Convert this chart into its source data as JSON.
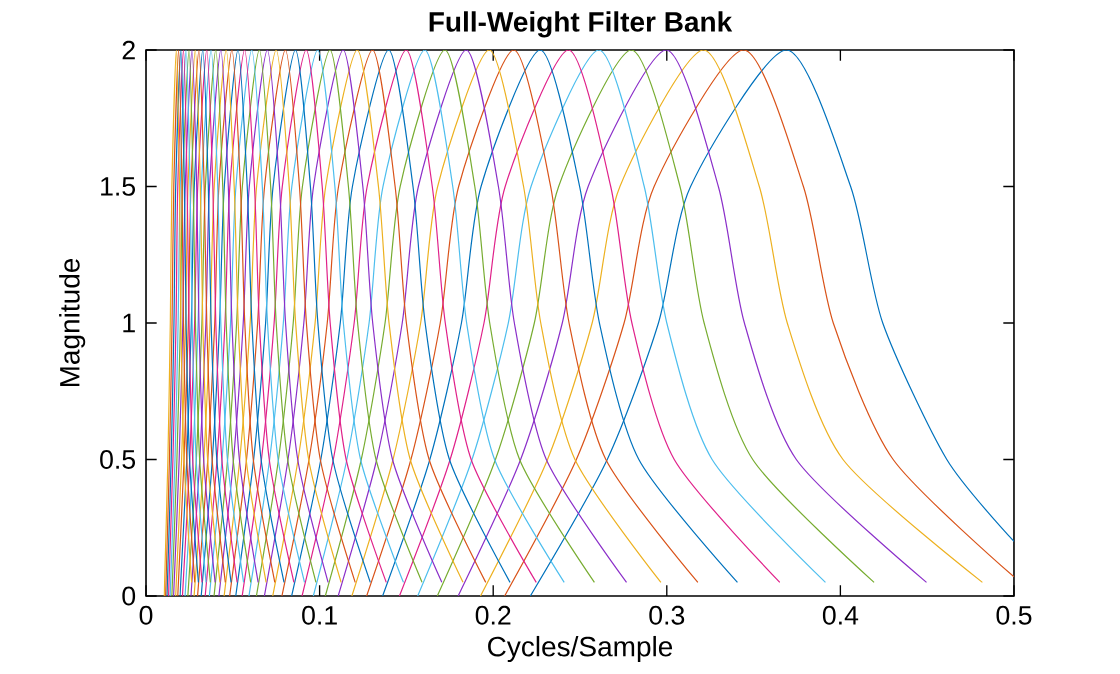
{
  "chart_data": {
    "type": "line",
    "title": "Full-Weight Filter Bank",
    "xlabel": "Cycles/Sample",
    "ylabel": "Magnitude",
    "xlim": [
      0,
      0.5
    ],
    "ylim": [
      0,
      2
    ],
    "xticks": [
      0,
      0.1,
      0.2,
      0.3,
      0.4,
      0.5
    ],
    "yticks": [
      0,
      0.5,
      1,
      1.5,
      2
    ],
    "grid": false,
    "marker": "none",
    "line_style": "solid",
    "series": [
      {
        "color": "#0072bd",
        "x": [
          0.2214,
          0.2657,
          0.2952,
          0.3137,
          0.369,
          0.4059,
          0.4244,
          0.4613,
          0.5
        ],
        "values": [
          0,
          0.5,
          1,
          1.5,
          2,
          1.5,
          1,
          0.5,
          0.2
        ]
      },
      {
        "color": "#d95319",
        "x": [
          0.2066,
          0.2479,
          0.2754,
          0.2927,
          0.3443,
          0.3787,
          0.3959,
          0.4304,
          0.5
        ],
        "values": [
          0,
          0.5,
          1,
          1.5,
          2,
          1.5,
          1,
          0.5,
          0.07
        ]
      },
      {
        "color": "#edb120",
        "x": [
          0.1927,
          0.2313,
          0.257,
          0.273,
          0.3212,
          0.3533,
          0.3694,
          0.4015,
          0.4818
        ],
        "values": [
          0,
          0.5,
          1,
          1.5,
          2,
          1.5,
          1,
          0.5,
          0.05
        ]
      },
      {
        "color": "#8b2fc9",
        "x": [
          0.1798,
          0.2158,
          0.2398,
          0.2547,
          0.2997,
          0.3297,
          0.3447,
          0.3746,
          0.4496
        ],
        "values": [
          0,
          0.5,
          1,
          1.5,
          2,
          1.5,
          1,
          0.5,
          0.05
        ]
      },
      {
        "color": "#77ac30",
        "x": [
          0.1678,
          0.2013,
          0.2237,
          0.2377,
          0.2796,
          0.3076,
          0.3215,
          0.3495,
          0.4194
        ],
        "values": [
          0,
          0.5,
          1,
          1.5,
          2,
          1.5,
          1,
          0.5,
          0.05
        ]
      },
      {
        "color": "#4dbeee",
        "x": [
          0.1565,
          0.1878,
          0.2087,
          0.2218,
          0.2609,
          0.287,
          0.3,
          0.3261,
          0.3914
        ],
        "values": [
          0,
          0.5,
          1,
          1.5,
          2,
          1.5,
          1,
          0.5,
          0.05
        ]
      },
      {
        "color": "#e0218a",
        "x": [
          0.146,
          0.1752,
          0.1947,
          0.2069,
          0.2434,
          0.2677,
          0.2799,
          0.3043,
          0.3651
        ],
        "values": [
          0,
          0.5,
          1,
          1.5,
          2,
          1.5,
          1,
          0.5,
          0.05
        ]
      },
      {
        "color": "#0072bd",
        "x": [
          0.1363,
          0.1635,
          0.1817,
          0.193,
          0.2271,
          0.2498,
          0.2612,
          0.2839,
          0.3407
        ],
        "values": [
          0,
          0.5,
          1,
          1.5,
          2,
          1.5,
          1,
          0.5,
          0.05
        ]
      },
      {
        "color": "#d95319",
        "x": [
          0.1271,
          0.1526,
          0.1695,
          0.1801,
          0.2119,
          0.2331,
          0.2437,
          0.2649,
          0.3179
        ],
        "values": [
          0,
          0.5,
          1,
          1.5,
          2,
          1.5,
          1,
          0.5,
          0.05
        ]
      },
      {
        "color": "#edb120",
        "x": [
          0.1186,
          0.1423,
          0.1582,
          0.168,
          0.1977,
          0.2175,
          0.2274,
          0.2471,
          0.2966
        ],
        "values": [
          0,
          0.5,
          1,
          1.5,
          2,
          1.5,
          1,
          0.5,
          0.05
        ]
      },
      {
        "color": "#8b2fc9",
        "x": [
          0.1107,
          0.1329,
          0.1476,
          0.1569,
          0.1845,
          0.203,
          0.2122,
          0.2306,
          0.2768
        ],
        "values": [
          0,
          0.5,
          1,
          1.5,
          2,
          1.5,
          1,
          0.5,
          0.05
        ]
      },
      {
        "color": "#77ac30",
        "x": [
          0.1033,
          0.124,
          0.1377,
          0.1464,
          0.1722,
          0.1894,
          0.198,
          0.2152,
          0.2583
        ],
        "values": [
          0,
          0.5,
          1,
          1.5,
          2,
          1.5,
          1,
          0.5,
          0.05
        ]
      },
      {
        "color": "#4dbeee",
        "x": [
          0.0964,
          0.1157,
          0.1285,
          0.1365,
          0.1606,
          0.1767,
          0.1847,
          0.2008,
          0.2409
        ],
        "values": [
          0,
          0.5,
          1,
          1.5,
          2,
          1.5,
          1,
          0.5,
          0.05
        ]
      },
      {
        "color": "#e0218a",
        "x": [
          0.0899,
          0.1079,
          0.1199,
          0.1274,
          0.1499,
          0.1649,
          0.1724,
          0.1873,
          0.2248
        ],
        "values": [
          0,
          0.5,
          1,
          1.5,
          2,
          1.5,
          1,
          0.5,
          0.05
        ]
      },
      {
        "color": "#0072bd",
        "x": [
          0.0839,
          0.1007,
          0.1119,
          0.1189,
          0.1398,
          0.1538,
          0.1608,
          0.1748,
          0.2097
        ],
        "values": [
          0,
          0.5,
          1,
          1.5,
          2,
          1.5,
          1,
          0.5,
          0.05
        ]
      },
      {
        "color": "#d95319",
        "x": [
          0.0783,
          0.0939,
          0.1044,
          0.1109,
          0.1305,
          0.1435,
          0.15,
          0.1631,
          0.1957
        ],
        "values": [
          0,
          0.5,
          1,
          1.5,
          2,
          1.5,
          1,
          0.5,
          0.05
        ]
      },
      {
        "color": "#edb120",
        "x": [
          0.073,
          0.0876,
          0.0974,
          0.1035,
          0.1217,
          0.1339,
          0.14,
          0.1522,
          0.1826
        ],
        "values": [
          0,
          0.5,
          1,
          1.5,
          2,
          1.5,
          1,
          0.5,
          0.05
        ]
      },
      {
        "color": "#8b2fc9",
        "x": [
          0.0682,
          0.0818,
          0.0909,
          0.0965,
          0.1136,
          0.1249,
          0.1306,
          0.142,
          0.1704
        ],
        "values": [
          0,
          0.5,
          1,
          1.5,
          2,
          1.5,
          1,
          0.5,
          0.05
        ]
      },
      {
        "color": "#77ac30",
        "x": [
          0.0636,
          0.0763,
          0.0848,
          0.0901,
          0.106,
          0.1166,
          0.1219,
          0.1325,
          0.159
        ],
        "values": [
          0,
          0.5,
          1,
          1.5,
          2,
          1.5,
          1,
          0.5,
          0.05
        ]
      },
      {
        "color": "#4dbeee",
        "x": [
          0.0593,
          0.0712,
          0.0791,
          0.084,
          0.0989,
          0.1088,
          0.1137,
          0.1236,
          0.1483
        ],
        "values": [
          0,
          0.5,
          1,
          1.5,
          2,
          1.5,
          1,
          0.5,
          0.05
        ]
      },
      {
        "color": "#e0218a",
        "x": [
          0.0554,
          0.0665,
          0.0738,
          0.0785,
          0.0923,
          0.1015,
          0.1061,
          0.1153,
          0.1384
        ],
        "values": [
          0,
          0.5,
          1,
          1.5,
          2,
          1.5,
          1,
          0.5,
          0.05
        ]
      },
      {
        "color": "#0072bd",
        "x": [
          0.0517,
          0.062,
          0.0689,
          0.0732,
          0.0861,
          0.0947,
          0.099,
          0.1076,
          0.1292
        ],
        "values": [
          0,
          0.5,
          1,
          1.5,
          2,
          1.5,
          1,
          0.5,
          0.05
        ]
      },
      {
        "color": "#d95319",
        "x": [
          0.0482,
          0.0579,
          0.0643,
          0.0683,
          0.0803,
          0.0884,
          0.0924,
          0.1004,
          0.1205
        ],
        "values": [
          0,
          0.5,
          1,
          1.5,
          2,
          1.5,
          1,
          0.5,
          0.05
        ]
      },
      {
        "color": "#edb120",
        "x": [
          0.045,
          0.054,
          0.06,
          0.0637,
          0.075,
          0.0825,
          0.0862,
          0.0937,
          0.1124
        ],
        "values": [
          0,
          0.5,
          1,
          1.5,
          2,
          1.5,
          1,
          0.5,
          0.05
        ]
      },
      {
        "color": "#8b2fc9",
        "x": [
          0.042,
          0.0504,
          0.056,
          0.0595,
          0.0699,
          0.0769,
          0.0804,
          0.0874,
          0.1049
        ],
        "values": [
          0,
          0.5,
          1,
          1.5,
          2,
          1.5,
          1,
          0.5,
          0.05
        ]
      },
      {
        "color": "#77ac30",
        "x": [
          0.0392,
          0.047,
          0.0522,
          0.0555,
          0.0653,
          0.0718,
          0.075,
          0.0816,
          0.0979
        ],
        "values": [
          0,
          0.5,
          1,
          1.5,
          2,
          1.5,
          1,
          0.5,
          0.05
        ]
      },
      {
        "color": "#4dbeee",
        "x": [
          0.0365,
          0.0438,
          0.0487,
          0.0518,
          0.0609,
          0.067,
          0.07,
          0.0761,
          0.0913
        ],
        "values": [
          0,
          0.5,
          1,
          1.5,
          2,
          1.5,
          1,
          0.5,
          0.05
        ]
      },
      {
        "color": "#e0218a",
        "x": [
          0.0341,
          0.0409,
          0.0455,
          0.0483,
          0.0568,
          0.0625,
          0.0653,
          0.071,
          0.0852
        ],
        "values": [
          0,
          0.5,
          1,
          1.5,
          2,
          1.5,
          1,
          0.5,
          0.05
        ]
      },
      {
        "color": "#0072bd",
        "x": [
          0.0318,
          0.0382,
          0.0424,
          0.0451,
          0.053,
          0.0583,
          0.061,
          0.0663,
          0.0795
        ],
        "values": [
          0,
          0.5,
          1,
          1.5,
          2,
          1.5,
          1,
          0.5,
          0.05
        ]
      },
      {
        "color": "#d95319",
        "x": [
          0.0297,
          0.0356,
          0.0396,
          0.042,
          0.0495,
          0.0544,
          0.0569,
          0.0618,
          0.0742
        ],
        "values": [
          0,
          0.5,
          1,
          1.5,
          2,
          1.5,
          1,
          0.5,
          0.05
        ]
      },
      {
        "color": "#edb120",
        "x": [
          0.0277,
          0.0333,
          0.0369,
          0.0393,
          0.0462,
          0.0508,
          0.0531,
          0.0577,
          0.0692
        ],
        "values": [
          0,
          0.5,
          1,
          1.5,
          2,
          1.5,
          1,
          0.5,
          0.05
        ]
      },
      {
        "color": "#8b2fc9",
        "x": [
          0.0259,
          0.031,
          0.0345,
          0.0366,
          0.0431,
          0.0474,
          0.0495,
          0.0538,
          0.0646
        ],
        "values": [
          0,
          0.5,
          1,
          1.5,
          2,
          1.5,
          1,
          0.5,
          0.05
        ]
      },
      {
        "color": "#77ac30",
        "x": [
          0.0241,
          0.029,
          0.0322,
          0.0342,
          0.0402,
          0.0442,
          0.0462,
          0.0502,
          0.0603
        ],
        "values": [
          0,
          0.5,
          1,
          1.5,
          2,
          1.5,
          1,
          0.5,
          0.05
        ]
      },
      {
        "color": "#4dbeee",
        "x": [
          0.0225,
          0.027,
          0.03,
          0.0319,
          0.0375,
          0.0413,
          0.0431,
          0.0469,
          0.0562
        ],
        "values": [
          0,
          0.5,
          1,
          1.5,
          2,
          1.5,
          1,
          0.5,
          0.05
        ]
      },
      {
        "color": "#e0218a",
        "x": [
          0.021,
          0.0252,
          0.028,
          0.0298,
          0.035,
          0.0385,
          0.0402,
          0.0437,
          0.0525
        ],
        "values": [
          0,
          0.5,
          1,
          1.5,
          2,
          1.5,
          1,
          0.5,
          0.05
        ]
      },
      {
        "color": "#0072bd",
        "x": [
          0.0196,
          0.0235,
          0.0261,
          0.0278,
          0.0327,
          0.0359,
          0.0375,
          0.0408,
          0.049
        ],
        "values": [
          0,
          0.5,
          1,
          1.5,
          2,
          1.5,
          1,
          0.5,
          0.05
        ]
      },
      {
        "color": "#d95319",
        "x": [
          0.0183,
          0.0219,
          0.0244,
          0.0259,
          0.0305,
          0.0335,
          0.035,
          0.0381,
          0.0457
        ],
        "values": [
          0,
          0.5,
          1,
          1.5,
          2,
          1.5,
          1,
          0.5,
          0.05
        ]
      },
      {
        "color": "#edb120",
        "x": [
          0.0171,
          0.0205,
          0.0228,
          0.0242,
          0.0284,
          0.0313,
          0.0327,
          0.0355,
          0.0426
        ],
        "values": [
          0,
          0.5,
          1,
          1.5,
          2,
          1.5,
          1,
          0.5,
          0.05
        ]
      },
      {
        "color": "#8b2fc9",
        "x": [
          0.0159,
          0.0191,
          0.0212,
          0.0226,
          0.0265,
          0.0292,
          0.0305,
          0.0332,
          0.0398
        ],
        "values": [
          0,
          0.5,
          1,
          1.5,
          2,
          1.5,
          1,
          0.5,
          0.05
        ]
      },
      {
        "color": "#77ac30",
        "x": [
          0.0149,
          0.0178,
          0.0198,
          0.021,
          0.0248,
          0.0272,
          0.0285,
          0.0309,
          0.0371
        ],
        "values": [
          0,
          0.5,
          1,
          1.5,
          2,
          1.5,
          1,
          0.5,
          0.05
        ]
      },
      {
        "color": "#4dbeee",
        "x": [
          0.0139,
          0.0167,
          0.0185,
          0.0197,
          0.0231,
          0.0254,
          0.0266,
          0.0289,
          0.0346
        ],
        "values": [
          0,
          0.5,
          1,
          1.5,
          2,
          1.5,
          1,
          0.5,
          0.05
        ]
      },
      {
        "color": "#e0218a",
        "x": [
          0.013,
          0.0155,
          0.0173,
          0.0183,
          0.0216,
          0.0237,
          0.0248,
          0.0269,
          0.0323
        ],
        "values": [
          0,
          0.5,
          1,
          1.5,
          2,
          1.5,
          1,
          0.5,
          0.05
        ]
      },
      {
        "color": "#0072bd",
        "x": [
          0.0121,
          0.0145,
          0.0161,
          0.0171,
          0.0201,
          0.0221,
          0.0231,
          0.0251,
          0.0302
        ],
        "values": [
          0,
          0.5,
          1,
          1.5,
          2,
          1.5,
          1,
          0.5,
          0.05
        ]
      },
      {
        "color": "#d95319",
        "x": [
          0.0113,
          0.0135,
          0.015,
          0.016,
          0.0188,
          0.0207,
          0.0216,
          0.0235,
          0.0281
        ],
        "values": [
          0,
          0.5,
          1,
          1.5,
          2,
          1.5,
          1,
          0.5,
          0.05
        ]
      },
      {
        "color": "#edb120",
        "x": [
          0.0105,
          0.0126,
          0.014,
          0.0149,
          0.0175,
          0.0193,
          0.0201,
          0.0219,
          0.0263
        ],
        "values": [
          0,
          0.5,
          1,
          1.5,
          2,
          1.5,
          1,
          0.5,
          0.05
        ]
      }
    ]
  }
}
